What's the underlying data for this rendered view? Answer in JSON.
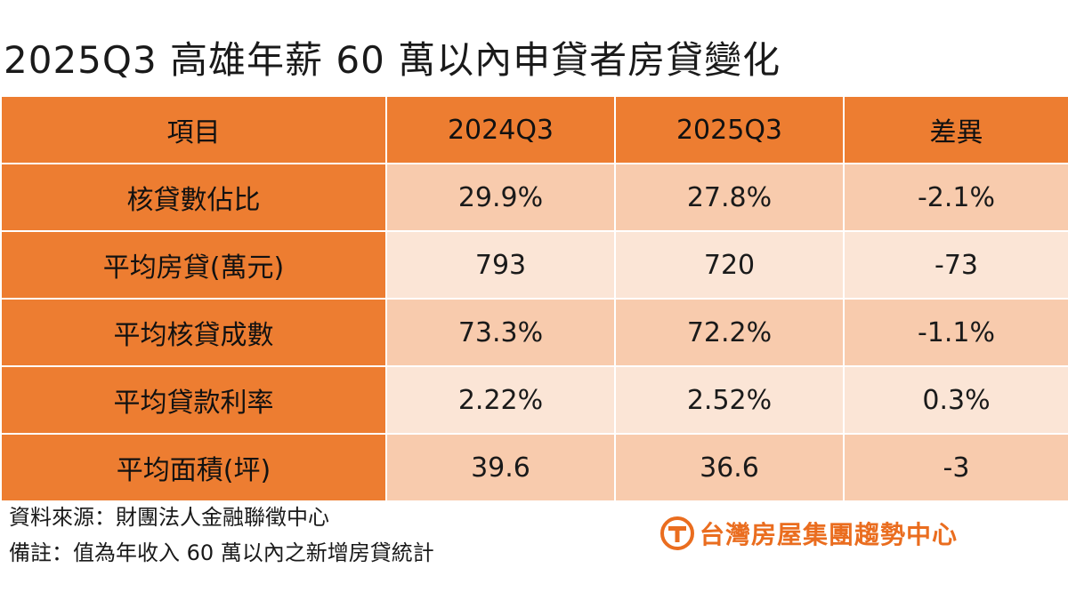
{
  "title": "2025Q3 高雄年薪 60 萬以內申貸者房貸變化",
  "chart_data": {
    "type": "table",
    "title": "2025Q3 高雄年薪 60 萬以內申貸者房貸變化",
    "columns": [
      "項目",
      "2024Q3",
      "2025Q3",
      "差異"
    ],
    "rows": [
      {
        "label": "核貸數佔比",
        "values": [
          "29.9%",
          "27.8%",
          "-2.1%"
        ]
      },
      {
        "label": "平均房貸(萬元)",
        "values": [
          "793",
          "720",
          "-73"
        ]
      },
      {
        "label": "平均核貸成數",
        "values": [
          "73.3%",
          "72.2%",
          "-1.1%"
        ]
      },
      {
        "label": "平均貸款利率",
        "values": [
          "2.22%",
          "2.52%",
          "0.3%"
        ]
      },
      {
        "label": "平均面積(坪)",
        "values": [
          "39.6",
          "36.6",
          "-3"
        ]
      }
    ]
  },
  "notes": {
    "source": "資料來源：財團法人金融聯徵中心",
    "remark": "備註：值為年收入 60 萬以內之新增房貸統計"
  },
  "logo": {
    "text": "台灣房屋集團趨勢中心",
    "color": "#ea6d1f",
    "icon": "taiwan-realty-logo-icon"
  },
  "colors": {
    "header": "#ed7d31",
    "row_odd": "#f8cbad",
    "row_even": "#fbe5d6"
  }
}
